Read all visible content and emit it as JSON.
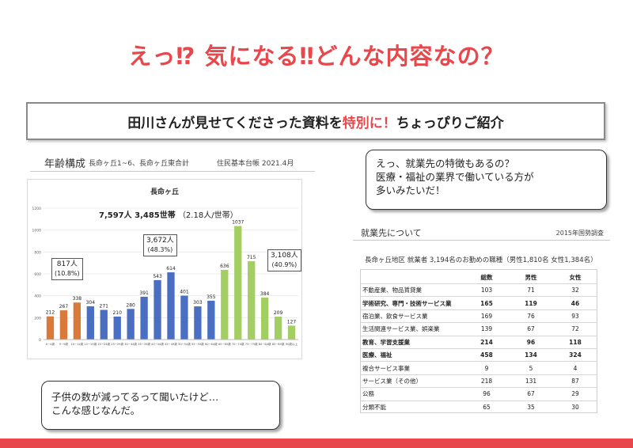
{
  "title": "えっ⁉  気になる‼どんな内容なの？",
  "subtitle": {
    "pre": "田川さんが見せてくださった資料を",
    "highlight": "特別に！",
    "post": "ちょっぴりご紹介"
  },
  "age_panel": {
    "heading": "年齢構成",
    "area": "長命ヶ丘1~6、長命ヶ丘東合計",
    "source": "住民基本台帳 2021.4月"
  },
  "chart_data": {
    "type": "bar",
    "title": "長命ヶ丘",
    "summary_main": "7,597人 3,485世帯",
    "summary_sub": "（2.18人/世帯）",
    "categories": [
      "0~4歳",
      "5~9歳",
      "10~14歳",
      "15~19歳",
      "20~24歳",
      "25~29歳",
      "30~34歳",
      "35~39歳",
      "40~44歳",
      "45~49歳",
      "50~54歳",
      "55~59歳",
      "60~64歳",
      "65~69歳",
      "70~74歳",
      "75~79歳",
      "80~84歳",
      "85~89歳",
      "90歳以上"
    ],
    "values": [
      212,
      267,
      338,
      304,
      271,
      210,
      280,
      391,
      543,
      614,
      401,
      303,
      355,
      636,
      1037,
      715,
      384,
      209,
      127
    ],
    "group_colors": [
      "#d9793a",
      "#d9793a",
      "#d9793a",
      "#4a6fc2",
      "#4a6fc2",
      "#4a6fc2",
      "#4a6fc2",
      "#4a6fc2",
      "#4a6fc2",
      "#4a6fc2",
      "#4a6fc2",
      "#4a6fc2",
      "#4a6fc2",
      "#a3cf62",
      "#a3cf62",
      "#a3cf62",
      "#a3cf62",
      "#a3cf62",
      "#a3cf62"
    ],
    "ylim": [
      0,
      1200
    ],
    "yticks": [
      0,
      200,
      400,
      600,
      800,
      1000,
      1200
    ],
    "annotations": [
      {
        "people": "817人",
        "pct": "(10.8%)"
      },
      {
        "people": "3,672人",
        "pct": "(48.3%)"
      },
      {
        "people": "3,108人",
        "pct": "(40.9%)"
      }
    ]
  },
  "bubble_top": {
    "lines": [
      "えっ、就業先の特徴もあるの？",
      "医療・福祉の業界で働いている方が",
      "多いみたいだ！"
    ]
  },
  "bubble_bottom": {
    "lines": [
      "子供の数が減ってるって聞いたけど…",
      "こんな感じなんだ。"
    ]
  },
  "employment": {
    "heading": "就業先について",
    "source": "2015年国勢調査",
    "subheading": "長命ヶ丘地区 就業者 3,194名のお勤めの職種（男性1,810名 女性1,384名）",
    "columns": [
      "",
      "総数",
      "男性",
      "女性"
    ],
    "rows": [
      {
        "cat": "不動産業、物品賃貸業",
        "total": "103",
        "male": "71",
        "female": "32",
        "bold": false
      },
      {
        "cat": "学術研究、専門・技術サービス業",
        "total": "165",
        "male": "119",
        "female": "46",
        "bold": true
      },
      {
        "cat": "宿泊業、飲食サービス業",
        "total": "169",
        "male": "76",
        "female": "93",
        "bold": false
      },
      {
        "cat": "生活関連サービス業、娯楽業",
        "total": "139",
        "male": "67",
        "female": "72",
        "bold": false
      },
      {
        "cat": "教育、学習支援業",
        "total": "214",
        "male": "96",
        "female": "118",
        "bold": true
      },
      {
        "cat": "医療、福祉",
        "total": "458",
        "male": "134",
        "female": "324",
        "bold": true
      },
      {
        "cat": "複合サービス事業",
        "total": "9",
        "male": "5",
        "female": "4",
        "bold": false
      },
      {
        "cat": "サービス業（その他）",
        "total": "218",
        "male": "131",
        "female": "87",
        "bold": false
      },
      {
        "cat": "公務",
        "total": "96",
        "male": "67",
        "female": "29",
        "bold": false
      },
      {
        "cat": "分類不能",
        "total": "65",
        "male": "35",
        "female": "30",
        "bold": false
      }
    ]
  },
  "colors": {
    "accent": "#e8474c",
    "orange": "#d9793a",
    "blue": "#4a6fc2",
    "green": "#a3cf62"
  }
}
